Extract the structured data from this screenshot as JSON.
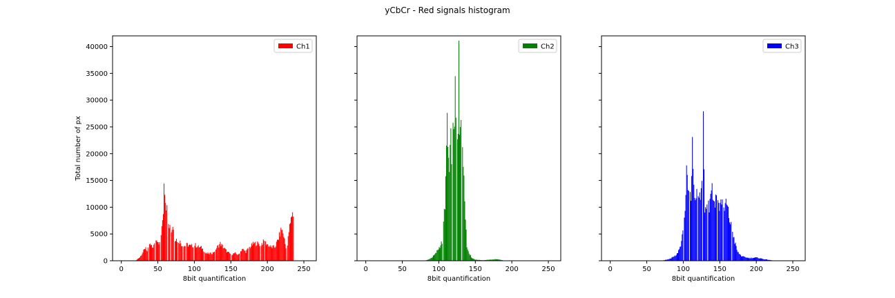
{
  "title": "yCbCr - Red signals histogram",
  "chart_data": [
    {
      "type": "bar",
      "legend": "Ch1",
      "color": "#ff0000",
      "xlabel": "8bit quantification",
      "ylabel": "Total number of px",
      "xlim": [
        -12,
        267
      ],
      "ylim": [
        0,
        42000
      ],
      "xticks": [
        0,
        50,
        100,
        150,
        200,
        250
      ],
      "yticks": [
        0,
        5000,
        10000,
        15000,
        20000,
        25000,
        30000,
        35000,
        40000
      ],
      "legend_loc": "upper right",
      "profile": [
        [
          18,
          0
        ],
        [
          20,
          100
        ],
        [
          25,
          700
        ],
        [
          30,
          1800
        ],
        [
          33,
          2600
        ],
        [
          35,
          1700
        ],
        [
          38,
          3100
        ],
        [
          42,
          2500
        ],
        [
          45,
          3000
        ],
        [
          48,
          4200
        ],
        [
          52,
          3200
        ],
        [
          55,
          5800
        ],
        [
          57,
          9500
        ],
        [
          58,
          15300
        ],
        [
          60,
          12000
        ],
        [
          62,
          9500
        ],
        [
          65,
          7000
        ],
        [
          68,
          5500
        ],
        [
          70,
          6600
        ],
        [
          73,
          4200
        ],
        [
          77,
          3800
        ],
        [
          80,
          3500
        ],
        [
          84,
          2700
        ],
        [
          90,
          3000
        ],
        [
          95,
          2700
        ],
        [
          100,
          3000
        ],
        [
          105,
          2600
        ],
        [
          110,
          2400
        ],
        [
          115,
          1400
        ],
        [
          120,
          1300
        ],
        [
          125,
          1500
        ],
        [
          130,
          2400
        ],
        [
          135,
          3200
        ],
        [
          140,
          2400
        ],
        [
          145,
          1600
        ],
        [
          150,
          1200
        ],
        [
          155,
          1400
        ],
        [
          160,
          1100
        ],
        [
          165,
          2200
        ],
        [
          170,
          1700
        ],
        [
          175,
          2500
        ],
        [
          180,
          3100
        ],
        [
          185,
          3300
        ],
        [
          190,
          3000
        ],
        [
          195,
          3600
        ],
        [
          200,
          3000
        ],
        [
          205,
          2500
        ],
        [
          210,
          2600
        ],
        [
          215,
          4200
        ],
        [
          219,
          6000
        ],
        [
          222,
          4700
        ],
        [
          226,
          1500
        ],
        [
          229,
          5500
        ],
        [
          232,
          7600
        ],
        [
          234,
          9500
        ],
        [
          235,
          8000
        ]
      ],
      "gaps": [
        37,
        46,
        53,
        63,
        67,
        72,
        77,
        84,
        88,
        99,
        113,
        128,
        150,
        162,
        174,
        190,
        196,
        226
      ],
      "range": [
        18,
        235
      ]
    },
    {
      "type": "bar",
      "legend": "Ch2",
      "color": "#008000",
      "xlabel": "8bit quantification",
      "ylabel": "",
      "xlim": [
        -12,
        267
      ],
      "ylim": [
        0,
        42000
      ],
      "xticks": [
        0,
        50,
        100,
        150,
        200,
        250
      ],
      "yticks": [
        0,
        5000,
        10000,
        15000,
        20000,
        25000,
        30000,
        35000,
        40000
      ],
      "legend_loc": "upper right",
      "profile": [
        [
          80,
          0
        ],
        [
          85,
          200
        ],
        [
          90,
          600
        ],
        [
          95,
          1300
        ],
        [
          100,
          2500
        ],
        [
          104,
          3500
        ],
        [
          106,
          7000
        ],
        [
          108,
          11000
        ],
        [
          110,
          19000
        ],
        [
          111,
          27000
        ],
        [
          112,
          21000
        ],
        [
          114,
          16000
        ],
        [
          116,
          22000
        ],
        [
          118,
          20000
        ],
        [
          120,
          26000
        ],
        [
          122,
          30000
        ],
        [
          124,
          22000
        ],
        [
          126,
          22000
        ],
        [
          127,
          40000
        ],
        [
          128,
          25000
        ],
        [
          130,
          30000
        ],
        [
          132,
          19000
        ],
        [
          134,
          17000
        ],
        [
          136,
          9000
        ],
        [
          138,
          2500
        ],
        [
          142,
          1200
        ],
        [
          145,
          500
        ],
        [
          150,
          200
        ],
        [
          160,
          100
        ],
        [
          180,
          300
        ],
        [
          190,
          0
        ]
      ],
      "gaps": [
        105,
        118,
        124,
        131
      ],
      "range": [
        80,
        190
      ]
    },
    {
      "type": "bar",
      "legend": "Ch3",
      "color": "#0000ff",
      "xlabel": "8bit quantification",
      "ylabel": "",
      "xlim": [
        -12,
        267
      ],
      "ylim": [
        0,
        42000
      ],
      "xticks": [
        0,
        50,
        100,
        150,
        200,
        250
      ],
      "yticks": [
        0,
        5000,
        10000,
        15000,
        20000,
        25000,
        30000,
        35000,
        40000
      ],
      "legend_loc": "upper right",
      "profile": [
        [
          70,
          0
        ],
        [
          80,
          300
        ],
        [
          90,
          1000
        ],
        [
          95,
          2500
        ],
        [
          99,
          5000
        ],
        [
          101,
          8500
        ],
        [
          103,
          11000
        ],
        [
          104,
          15500
        ],
        [
          106,
          13000
        ],
        [
          108,
          10000
        ],
        [
          110,
          13000
        ],
        [
          112,
          21000
        ],
        [
          115,
          12000
        ],
        [
          118,
          14000
        ],
        [
          120,
          11500
        ],
        [
          123,
          12000
        ],
        [
          125,
          14500
        ],
        [
          127,
          29000
        ],
        [
          129,
          9500
        ],
        [
          132,
          12000
        ],
        [
          135,
          10000
        ],
        [
          138,
          14500
        ],
        [
          141,
          11000
        ],
        [
          145,
          12000
        ],
        [
          148,
          10000
        ],
        [
          151,
          11000
        ],
        [
          153,
          12000
        ],
        [
          155,
          8800
        ],
        [
          158,
          11000
        ],
        [
          161,
          9000
        ],
        [
          164,
          7000
        ],
        [
          167,
          5500
        ],
        [
          170,
          3500
        ],
        [
          174,
          1600
        ],
        [
          180,
          800
        ],
        [
          190,
          500
        ],
        [
          200,
          600
        ],
        [
          210,
          300
        ],
        [
          220,
          100
        ],
        [
          225,
          0
        ]
      ],
      "gaps": [
        100,
        108,
        119,
        126,
        133,
        146,
        154,
        166
      ],
      "range": [
        70,
        225
      ]
    }
  ]
}
